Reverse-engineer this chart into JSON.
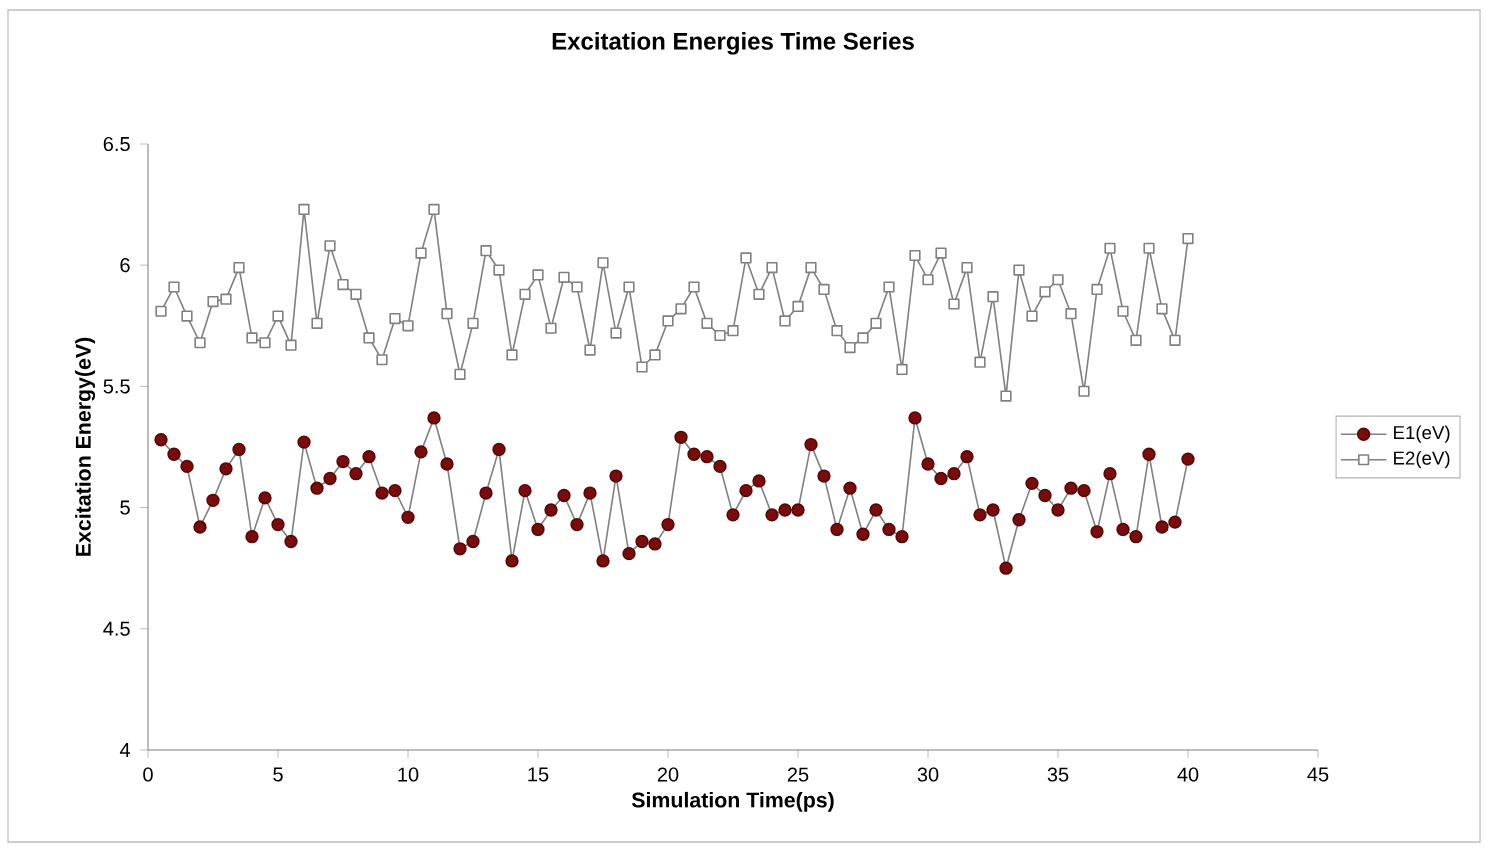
{
  "chart_data": {
    "type": "line",
    "title": "Excitation Energies Time Series",
    "xlabel": "Simulation Time(ps)",
    "ylabel": "Excitation Energy(eV)",
    "x": [
      0.5,
      1,
      1.5,
      2,
      2.5,
      3,
      3.5,
      4,
      4.5,
      5,
      5.5,
      6,
      6.5,
      7,
      7.5,
      8,
      8.5,
      9,
      9.5,
      10,
      10.5,
      11,
      11.5,
      12,
      12.5,
      13,
      13.5,
      14,
      14.5,
      15,
      15.5,
      16,
      16.5,
      17,
      17.5,
      18,
      18.5,
      19,
      19.5,
      20,
      20.5,
      21,
      21.5,
      22,
      22.5,
      23,
      23.5,
      24,
      24.5,
      25,
      25.5,
      26,
      26.5,
      27,
      27.5,
      28,
      28.5,
      29,
      29.5,
      30,
      30.5,
      31,
      31.5,
      32,
      32.5,
      33,
      33.5,
      34,
      34.5,
      35,
      35.5,
      36,
      36.5,
      37,
      37.5,
      38,
      38.5,
      39,
      39.5,
      40
    ],
    "series": [
      {
        "name": "E1(eV)",
        "color": "#7b0c0c",
        "marker": "circle",
        "values": [
          5.28,
          5.22,
          5.17,
          4.92,
          5.03,
          5.16,
          5.24,
          4.88,
          5.04,
          4.93,
          4.86,
          5.27,
          5.08,
          5.12,
          5.19,
          5.14,
          5.21,
          5.06,
          5.07,
          4.96,
          5.23,
          5.37,
          5.18,
          4.83,
          4.86,
          5.06,
          5.24,
          4.78,
          5.07,
          4.91,
          4.99,
          5.05,
          4.93,
          5.06,
          4.78,
          5.13,
          4.81,
          4.86,
          4.85,
          4.93,
          5.29,
          5.22,
          5.21,
          5.17,
          4.97,
          5.07,
          5.11,
          4.97,
          4.99,
          4.99,
          5.26,
          5.13,
          4.91,
          5.08,
          4.89,
          4.99,
          4.91,
          4.88,
          5.37,
          5.18,
          5.12,
          5.14,
          5.21,
          4.97,
          4.99,
          4.75,
          4.95,
          5.1,
          5.05,
          4.99,
          5.08,
          5.07,
          4.9,
          5.14,
          4.91,
          4.88,
          5.22,
          4.92,
          4.94,
          5.2
        ]
      },
      {
        "name": "E2(eV)",
        "color": "#808080",
        "marker": "square",
        "values": [
          5.81,
          5.91,
          5.79,
          5.68,
          5.85,
          5.86,
          5.99,
          5.7,
          5.68,
          5.79,
          5.67,
          6.23,
          5.76,
          6.08,
          5.92,
          5.88,
          5.7,
          5.61,
          5.78,
          5.75,
          6.05,
          6.23,
          5.8,
          5.55,
          5.76,
          6.06,
          5.98,
          5.63,
          5.88,
          5.96,
          5.74,
          5.95,
          5.91,
          5.65,
          6.01,
          5.72,
          5.91,
          5.58,
          5.63,
          5.77,
          5.82,
          5.91,
          5.76,
          5.71,
          5.73,
          6.03,
          5.88,
          5.99,
          5.77,
          5.83,
          5.99,
          5.9,
          5.73,
          5.66,
          5.7,
          5.76,
          5.91,
          5.57,
          6.04,
          5.94,
          6.05,
          5.84,
          5.99,
          5.6,
          5.87,
          5.46,
          5.98,
          5.79,
          5.89,
          5.94,
          5.8,
          5.48,
          5.9,
          6.07,
          5.81,
          5.69,
          6.07,
          5.82,
          5.69,
          6.11
        ]
      }
    ],
    "xlim": [
      0,
      45
    ],
    "xticks": [
      0,
      5,
      10,
      15,
      20,
      25,
      30,
      35,
      40,
      45
    ],
    "ylim": [
      4,
      6.5
    ],
    "yticks": [
      4,
      4.5,
      5,
      5.5,
      6,
      6.5
    ],
    "legend": "right",
    "grid": false
  }
}
